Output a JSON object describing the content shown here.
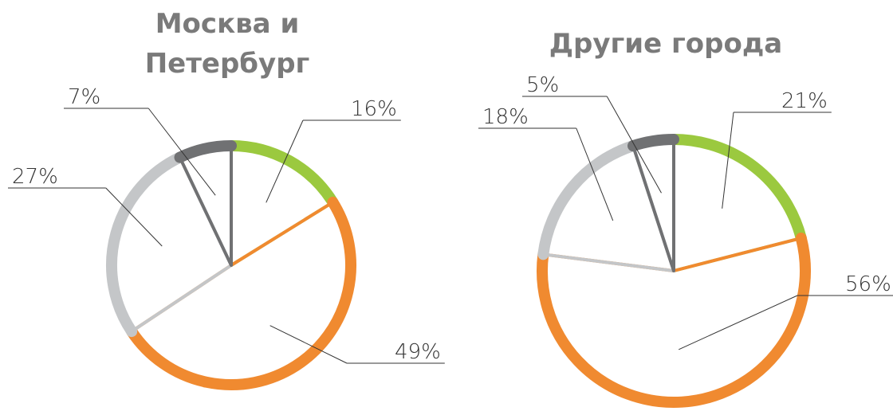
{
  "chart_data": [
    {
      "type": "pie",
      "title": "Москва и Петербург",
      "categories": [
        null,
        null,
        null,
        null
      ],
      "values": [
        16,
        49,
        27,
        7
      ],
      "value_labels": [
        "16%",
        "49%",
        "27%",
        "7%"
      ],
      "colors": [
        "#9bc93f",
        "#f08a30",
        "#c4c6c8",
        "#707173"
      ]
    },
    {
      "type": "pie",
      "title": "Другие города",
      "categories": [
        null,
        null,
        null,
        null
      ],
      "values": [
        21,
        56,
        18,
        5
      ],
      "value_labels": [
        "21%",
        "56%",
        "18%",
        "5%"
      ],
      "colors": [
        "#9bc93f",
        "#f08a30",
        "#c4c6c8",
        "#707173"
      ]
    }
  ]
}
